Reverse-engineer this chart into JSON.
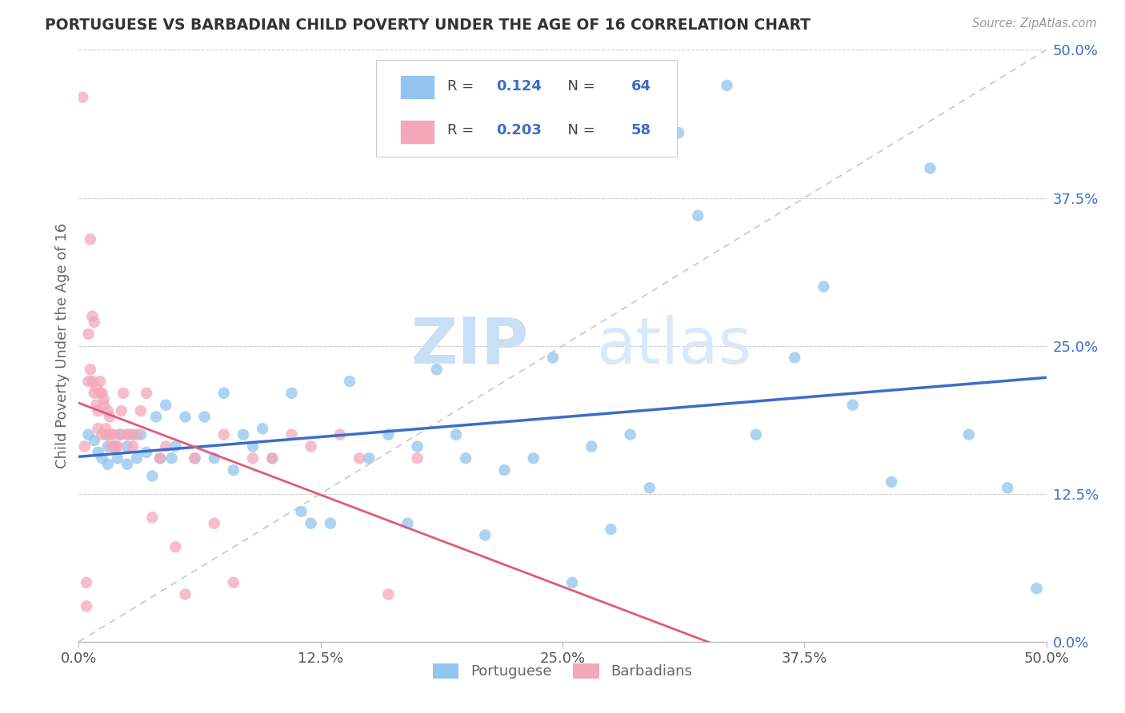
{
  "title": "PORTUGUESE VS BARBADIAN CHILD POVERTY UNDER THE AGE OF 16 CORRELATION CHART",
  "source": "Source: ZipAtlas.com",
  "ylabel": "Child Poverty Under the Age of 16",
  "xlabel_ticks": [
    "0.0%",
    "12.5%",
    "25.0%",
    "37.5%",
    "50.0%"
  ],
  "ylabel_ticks": [
    "0.0%",
    "12.5%",
    "25.0%",
    "37.5%",
    "50.0%"
  ],
  "xlim": [
    0.0,
    0.5
  ],
  "ylim": [
    0.0,
    0.5
  ],
  "portuguese_color": "#92C5F0",
  "barbadian_color": "#F4A7B9",
  "portuguese_line_color": "#3B6DC9",
  "barbadian_line_color": "#E05A7A",
  "diagonal_color": "#C8C8C8",
  "legend_r_portuguese": "0.124",
  "legend_n_portuguese": "64",
  "legend_r_barbadian": "0.203",
  "legend_n_barbadian": "58",
  "watermark_zip": "ZIP",
  "watermark_atlas": "atlas",
  "portuguese_scatter_x": [
    0.005,
    0.008,
    0.01,
    0.012,
    0.015,
    0.015,
    0.018,
    0.02,
    0.022,
    0.025,
    0.025,
    0.028,
    0.03,
    0.032,
    0.035,
    0.038,
    0.04,
    0.042,
    0.045,
    0.048,
    0.05,
    0.055,
    0.06,
    0.065,
    0.07,
    0.075,
    0.08,
    0.085,
    0.09,
    0.095,
    0.1,
    0.11,
    0.115,
    0.12,
    0.13,
    0.14,
    0.15,
    0.16,
    0.17,
    0.175,
    0.185,
    0.195,
    0.2,
    0.21,
    0.22,
    0.235,
    0.245,
    0.255,
    0.265,
    0.275,
    0.285,
    0.295,
    0.31,
    0.32,
    0.335,
    0.35,
    0.37,
    0.385,
    0.4,
    0.42,
    0.44,
    0.46,
    0.48,
    0.495
  ],
  "portuguese_scatter_y": [
    0.175,
    0.17,
    0.16,
    0.155,
    0.165,
    0.15,
    0.165,
    0.155,
    0.175,
    0.165,
    0.15,
    0.175,
    0.155,
    0.175,
    0.16,
    0.14,
    0.19,
    0.155,
    0.2,
    0.155,
    0.165,
    0.19,
    0.155,
    0.19,
    0.155,
    0.21,
    0.145,
    0.175,
    0.165,
    0.18,
    0.155,
    0.21,
    0.11,
    0.1,
    0.1,
    0.22,
    0.155,
    0.175,
    0.1,
    0.165,
    0.23,
    0.175,
    0.155,
    0.09,
    0.145,
    0.155,
    0.24,
    0.05,
    0.165,
    0.095,
    0.175,
    0.13,
    0.43,
    0.36,
    0.47,
    0.175,
    0.24,
    0.3,
    0.2,
    0.135,
    0.4,
    0.175,
    0.13,
    0.045
  ],
  "barbadian_scatter_x": [
    0.002,
    0.003,
    0.004,
    0.004,
    0.005,
    0.005,
    0.006,
    0.006,
    0.007,
    0.007,
    0.008,
    0.008,
    0.009,
    0.009,
    0.01,
    0.01,
    0.011,
    0.011,
    0.012,
    0.012,
    0.013,
    0.013,
    0.014,
    0.014,
    0.015,
    0.015,
    0.016,
    0.016,
    0.017,
    0.018,
    0.019,
    0.02,
    0.021,
    0.022,
    0.023,
    0.025,
    0.026,
    0.028,
    0.03,
    0.032,
    0.035,
    0.038,
    0.042,
    0.045,
    0.05,
    0.055,
    0.06,
    0.07,
    0.075,
    0.08,
    0.09,
    0.1,
    0.11,
    0.12,
    0.135,
    0.145,
    0.16,
    0.175
  ],
  "barbadian_scatter_y": [
    0.46,
    0.165,
    0.05,
    0.03,
    0.22,
    0.26,
    0.23,
    0.34,
    0.275,
    0.22,
    0.27,
    0.21,
    0.215,
    0.2,
    0.18,
    0.195,
    0.22,
    0.21,
    0.21,
    0.175,
    0.205,
    0.2,
    0.175,
    0.18,
    0.195,
    0.175,
    0.19,
    0.175,
    0.165,
    0.175,
    0.165,
    0.165,
    0.175,
    0.195,
    0.21,
    0.175,
    0.175,
    0.165,
    0.175,
    0.195,
    0.21,
    0.105,
    0.155,
    0.165,
    0.08,
    0.04,
    0.155,
    0.1,
    0.175,
    0.05,
    0.155,
    0.155,
    0.175,
    0.165,
    0.175,
    0.155,
    0.04,
    0.155
  ]
}
